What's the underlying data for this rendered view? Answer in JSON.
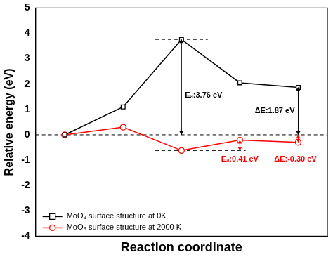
{
  "chart_data": {
    "type": "line",
    "x_label": "Reaction coordinate",
    "y_label": "Relative energy (eV)",
    "categories": [
      null,
      null,
      null,
      null,
      null
    ],
    "series": [
      {
        "name": "MoO₃ surface structure at 0K",
        "color": "#000000",
        "marker": "square",
        "values": [
          0,
          1.1,
          3.76,
          2.05,
          1.87
        ]
      },
      {
        "name": "MoO₃ surface structure at 2000 K",
        "color": "#ff0000",
        "marker": "circle",
        "values": [
          0,
          0.3,
          -0.62,
          -0.21,
          -0.3
        ]
      }
    ],
    "ylim": [
      -4,
      5
    ],
    "yticks": [
      -4,
      -3,
      -2,
      -1,
      0,
      1,
      2,
      3,
      4,
      5
    ],
    "grid": false,
    "legend": "lower left",
    "tick_labels": "y",
    "annotations": [
      {
        "text": "Eₐ:3.76 eV",
        "color": "#000000"
      },
      {
        "text": "ΔE:1.87 eV",
        "color": "#000000"
      },
      {
        "text": "Eₐ:0.41 eV",
        "color": "#ff0000"
      },
      {
        "text": "ΔE:-0.30 eV",
        "color": "#ff0000"
      }
    ]
  }
}
